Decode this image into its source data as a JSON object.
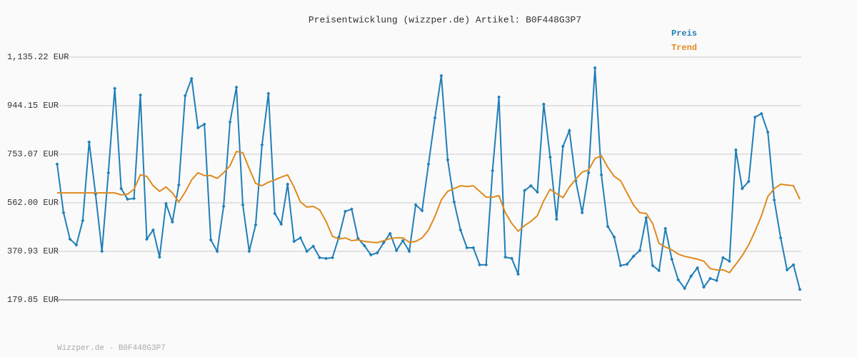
{
  "chart_data": {
    "type": "line",
    "title": "Preisentwicklung (wizzper.de) Artikel: B0F448G3P7",
    "footer": "Wizzper.de - B0F448G3P7",
    "legend_position": "top-right",
    "grid": true,
    "ylim": [
      179.85,
      1135.22
    ],
    "yticks": [
      {
        "value": 179.85,
        "label": "179.85 EUR"
      },
      {
        "value": 370.93,
        "label": "370.93 EUR"
      },
      {
        "value": 562.0,
        "label": "562.00 EUR"
      },
      {
        "value": 753.07,
        "label": "753.07 EUR"
      },
      {
        "value": 944.15,
        "label": "944.15 EUR"
      },
      {
        "value": 1135.22,
        "label": "1,135.22 EUR"
      }
    ],
    "series": [
      {
        "name": "Preis",
        "color": "#1f7fb8",
        "markers": true,
        "values": [
          714,
          523,
          419,
          396,
          492,
          801,
          596,
          371,
          680,
          1012,
          618,
          576,
          579,
          986,
          419,
          455,
          348,
          559,
          486,
          632,
          983,
          1051,
          857,
          871,
          416,
          371,
          548,
          880,
          1017,
          554,
          371,
          475,
          790,
          992,
          520,
          478,
          635,
          410,
          424,
          371,
          391,
          346,
          343,
          346,
          427,
          528,
          537,
          421,
          393,
          357,
          365,
          405,
          441,
          374,
          413,
          371,
          554,
          531,
          714,
          896,
          1062,
          731,
          565,
          455,
          385,
          385,
          318,
          318,
          688,
          978,
          348,
          343,
          281,
          610,
          629,
          604,
          950,
          742,
          497,
          784,
          846,
          649,
          523,
          680,
          1093,
          672,
          469,
          427,
          315,
          320,
          351,
          374,
          503,
          315,
          295,
          461,
          340,
          259,
          225,
          273,
          306,
          230,
          264,
          256,
          346,
          332,
          770,
          618,
          646,
          899,
          913,
          840,
          573,
          424,
          298,
          318,
          221
        ]
      },
      {
        "name": "Trend",
        "color": "#e08a1e",
        "markers": false,
        "values": [
          601,
          601,
          601,
          601,
          601,
          601,
          601,
          601,
          601,
          601,
          593,
          596,
          615,
          672,
          666,
          629,
          607,
          624,
          601,
          565,
          604,
          652,
          680,
          669,
          669,
          658,
          680,
          708,
          764,
          759,
          697,
          638,
          629,
          643,
          652,
          663,
          672,
          624,
          565,
          545,
          548,
          534,
          489,
          430,
          419,
          424,
          413,
          416,
          410,
          407,
          405,
          413,
          421,
          424,
          424,
          407,
          410,
          424,
          455,
          508,
          573,
          607,
          618,
          629,
          626,
          629,
          607,
          584,
          584,
          590,
          523,
          481,
          450,
          472,
          489,
          511,
          570,
          615,
          598,
          582,
          624,
          655,
          683,
          691,
          736,
          747,
          702,
          666,
          649,
          601,
          554,
          523,
          520,
          481,
          402,
          388,
          377,
          360,
          351,
          346,
          340,
          332,
          303,
          298,
          298,
          287,
          320,
          354,
          396,
          450,
          511,
          587,
          618,
          635,
          632,
          629,
          576
        ]
      }
    ]
  }
}
